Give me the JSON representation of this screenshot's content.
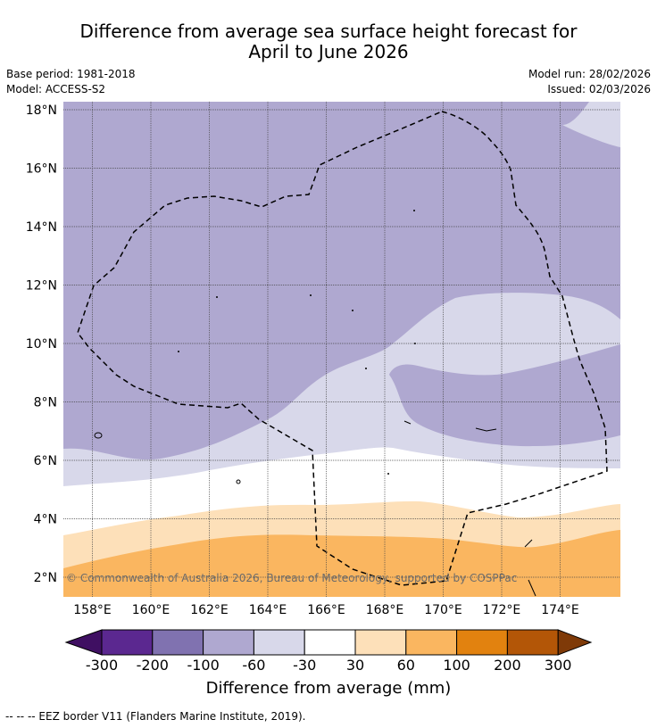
{
  "title": {
    "line1": "Difference from average sea surface height forecast for",
    "line2": "April to June 2026"
  },
  "meta": {
    "base_period": "Base period: 1981-2018",
    "model": "Model: ACCESS-S2",
    "model_run": "Model run: 28/02/2026",
    "issued": "Issued: 02/03/2026"
  },
  "map": {
    "lat_ticks": [
      "18°N",
      "16°N",
      "14°N",
      "12°N",
      "10°N",
      "8°N",
      "6°N",
      "4°N",
      "2°N"
    ],
    "lon_ticks": [
      "158°E",
      "160°E",
      "162°E",
      "164°E",
      "166°E",
      "168°E",
      "170°E",
      "172°E",
      "174°E"
    ],
    "copyright": "© Commonwealth of Australia 2026, Bureau of Meteorology, supported by COSPPac"
  },
  "colorbar": {
    "title": "Difference from average (mm)",
    "tick_labels": [
      "-300",
      "-200",
      "-100",
      "-60",
      "-30",
      "30",
      "60",
      "100",
      "200",
      "300"
    ],
    "colors": [
      "#3f0f62",
      "#5b2890",
      "#8072b0",
      "#afa8d0",
      "#d8d8ea",
      "#ffffff",
      "#fde0b9",
      "#fab660",
      "#e2820f",
      "#b35607",
      "#7f3a08"
    ]
  },
  "legend": {
    "eez_text": "--  --  -- EEZ border V11 (Flanders Marine Institute, 2019)."
  }
}
